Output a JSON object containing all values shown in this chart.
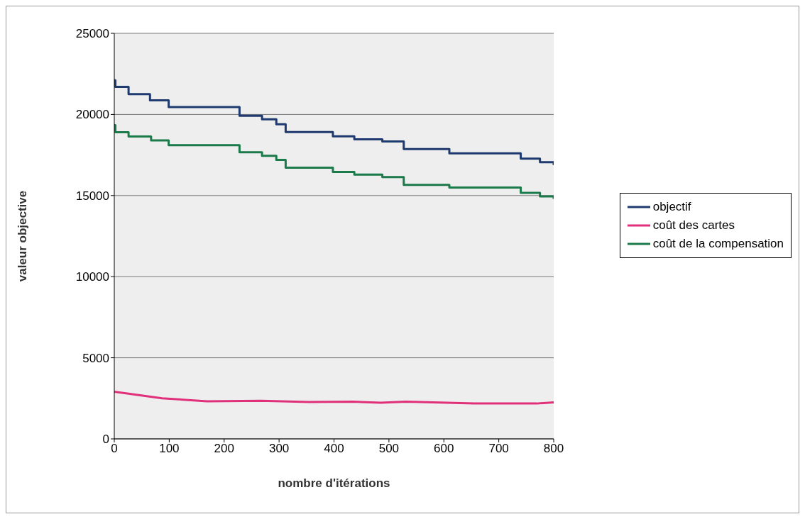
{
  "chart_data": {
    "type": "line",
    "xlabel": "nombre d'itérations",
    "ylabel": "valeur objective",
    "xlim": [
      0,
      800
    ],
    "xticks": [
      0,
      100,
      200,
      300,
      400,
      500,
      600,
      700,
      800
    ],
    "ylim": [
      0,
      25000
    ],
    "yticks": [
      0,
      5000,
      10000,
      15000,
      20000,
      25000
    ],
    "grid": "y",
    "legend": "right",
    "marker": "none",
    "line_style": "solid",
    "series": [
      {
        "name": "objectif",
        "type": "step",
        "color": "#1f3a6e",
        "x": [
          0,
          2,
          26,
          65,
          99,
          228,
          269,
          295,
          312,
          398,
          437,
          488,
          527,
          610,
          740,
          775,
          800
        ],
        "values": [
          22100,
          21700,
          21250,
          20870,
          20450,
          19920,
          19700,
          19390,
          18910,
          18650,
          18470,
          18330,
          17860,
          17600,
          17280,
          17060,
          16880
        ]
      },
      {
        "name": "coût des cartes",
        "type": "line",
        "color": "#e0307a",
        "x": [
          0,
          87,
          169,
          267,
          355,
          433,
          485,
          531,
          655,
          769,
          800
        ],
        "values": [
          2910,
          2500,
          2320,
          2350,
          2270,
          2290,
          2230,
          2290,
          2180,
          2180,
          2250
        ]
      },
      {
        "name": "coût de la compensation",
        "type": "step",
        "color": "#1a7a4a",
        "x": [
          0,
          2,
          26,
          67,
          99,
          228,
          269,
          295,
          312,
          398,
          437,
          488,
          527,
          610,
          740,
          775,
          800
        ],
        "values": [
          19340,
          18900,
          18640,
          18400,
          18110,
          17670,
          17450,
          17200,
          16720,
          16460,
          16290,
          16140,
          15660,
          15490,
          15170,
          14950,
          14790
        ]
      }
    ]
  }
}
